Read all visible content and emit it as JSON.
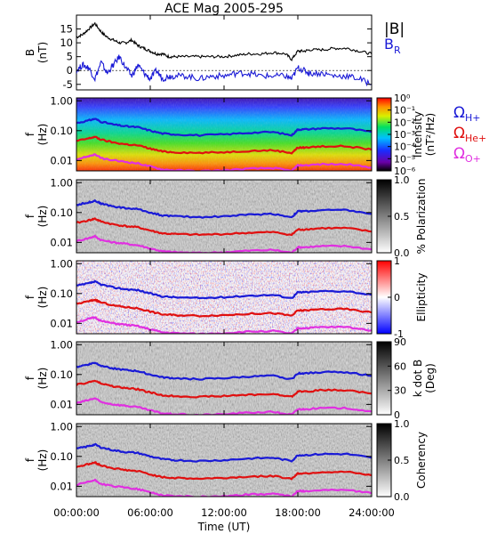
{
  "chart_data": {
    "type": "line",
    "title": "ACE Mag 2005-295",
    "xlabel": "Time (UT)",
    "x_ticks": [
      "00:00:00",
      "06:00:00",
      "12:00:00",
      "18:00:00",
      "24:00:00"
    ],
    "xlim": [
      0,
      24
    ],
    "panels": [
      {
        "kind": "timeseries",
        "ylabel_1": "B",
        "ylabel_2": "(nT)",
        "ylim": [
          -7,
          20
        ],
        "yticks": [
          "15",
          "10",
          "5",
          "0",
          "-5"
        ],
        "yticks_values": [
          15,
          10,
          5,
          0,
          -5
        ],
        "legend": [
          {
            "label": "|B|",
            "color": "#000000"
          },
          {
            "label": "B",
            "sub": "R",
            "color": "#1a1ad6"
          }
        ],
        "series": [
          {
            "name": "|B|",
            "color": "#000000",
            "x": [
              0,
              0.5,
              1,
              1.5,
              2,
              2.5,
              3,
              3.5,
              4,
              4.5,
              5,
              5.5,
              6,
              6.5,
              7,
              7.5,
              8,
              9,
              10,
              11,
              12,
              13,
              14,
              15,
              16,
              17,
              17.5,
              18,
              18.5,
              19,
              20,
              21,
              22,
              23,
              24
            ],
            "y": [
              12,
              13,
              15,
              17,
              14,
              12,
              11,
              10,
              10,
              11,
              9,
              8,
              7,
              6,
              6,
              5,
              5,
              5,
              5,
              5,
              5,
              5.5,
              6,
              6,
              6.5,
              6,
              4,
              7,
              7,
              7.5,
              7.5,
              8,
              8,
              7,
              6
            ]
          },
          {
            "name": "B_R",
            "color": "#1a1ad6",
            "x": [
              0,
              0.5,
              1,
              1.5,
              2,
              2.5,
              3,
              3.5,
              4,
              4.5,
              5,
              5.5,
              6,
              6.5,
              7,
              7.5,
              8,
              9,
              10,
              11,
              12,
              13,
              14,
              15,
              16,
              17,
              17.5,
              18,
              18.5,
              19,
              20,
              21,
              22,
              23,
              24
            ],
            "y": [
              0,
              2,
              1,
              -3,
              3,
              -1,
              2,
              5,
              1,
              -2,
              2,
              -1,
              -3,
              0,
              -3,
              -2,
              -2,
              -2,
              -3,
              -2,
              -2,
              -1,
              -1,
              -2,
              -2,
              -2,
              -3,
              1,
              0,
              -1,
              -1,
              -2,
              -2,
              -3,
              -5
            ]
          }
        ]
      },
      {
        "kind": "spectrogram",
        "name": "power",
        "ylabel_1": "f",
        "ylabel_2": "(Hz)",
        "yticks": [
          "1.00",
          "0.10",
          "0.01"
        ],
        "colorbar": {
          "palette": "rainbow",
          "ticks": [
            "10⁰",
            "10⁻¹",
            "10⁻²",
            "10⁻³",
            "10⁻⁴",
            "10⁻⁵",
            "10⁻⁶"
          ],
          "label_1": "Intensity",
          "label_2": "(nT²/Hz)"
        },
        "legend": [
          {
            "label": "Ω",
            "sub": "H+",
            "color": "#1a1ad6"
          },
          {
            "label": "Ω",
            "sub": "He+",
            "color": "#e01010"
          },
          {
            "label": "Ω",
            "sub": "O+",
            "color": "#e030e0"
          }
        ]
      },
      {
        "kind": "spectrogram",
        "name": "polarization",
        "ylabel_1": "f",
        "ylabel_2": "(Hz)",
        "yticks": [
          "1.00",
          "0.10",
          "0.01"
        ],
        "colorbar": {
          "palette": "gray",
          "ticks": [
            "1.0",
            "0.5",
            "0.0"
          ],
          "label_1": "% Polarization",
          "label_2": ""
        }
      },
      {
        "kind": "spectrogram",
        "name": "ellipticity",
        "ylabel_1": "f",
        "ylabel_2": "(Hz)",
        "yticks": [
          "1.00",
          "0.10",
          "0.01"
        ],
        "colorbar": {
          "palette": "bwr",
          "ticks": [
            "1",
            "0",
            "-1"
          ],
          "label_1": "Ellipticity",
          "label_2": ""
        }
      },
      {
        "kind": "spectrogram",
        "name": "kdotb",
        "ylabel_1": "f",
        "ylabel_2": "(Hz)",
        "yticks": [
          "1.00",
          "0.10",
          "0.01"
        ],
        "colorbar": {
          "palette": "gray",
          "ticks": [
            "90",
            "60",
            "30",
            "0"
          ],
          "label_1": "k dot B",
          "label_2": "(Deg)"
        }
      },
      {
        "kind": "spectrogram",
        "name": "coherency",
        "ylabel_1": "f",
        "ylabel_2": "(Hz)",
        "yticks": [
          "1.00",
          "0.10",
          "0.01"
        ],
        "colorbar": {
          "palette": "gray",
          "ticks": [
            "1.0",
            "0.5",
            "0.0"
          ],
          "label_1": "Coherency",
          "label_2": ""
        }
      }
    ],
    "gyrofrequency_lines": [
      {
        "name": "H+",
        "color": "#1a1ad6",
        "x": [
          0,
          1,
          1.5,
          2,
          3,
          4,
          5,
          6,
          7,
          8,
          10,
          12,
          14,
          16,
          17.5,
          18,
          18.5,
          20,
          22,
          24
        ],
        "y": [
          0.18,
          0.22,
          0.25,
          0.2,
          0.16,
          0.14,
          0.13,
          0.1,
          0.08,
          0.075,
          0.07,
          0.075,
          0.085,
          0.09,
          0.07,
          0.11,
          0.11,
          0.12,
          0.12,
          0.09
        ]
      },
      {
        "name": "He+",
        "color": "#e01010",
        "x": [
          0,
          1,
          1.5,
          2,
          3,
          4,
          5,
          6,
          7,
          8,
          10,
          12,
          14,
          16,
          17.5,
          18,
          18.5,
          20,
          22,
          24
        ],
        "y": [
          0.045,
          0.055,
          0.062,
          0.05,
          0.04,
          0.035,
          0.032,
          0.025,
          0.02,
          0.019,
          0.018,
          0.019,
          0.021,
          0.022,
          0.018,
          0.027,
          0.027,
          0.03,
          0.03,
          0.023
        ]
      },
      {
        "name": "O+",
        "color": "#e030e0",
        "x": [
          0,
          1,
          1.5,
          2,
          3,
          4,
          5,
          6,
          7,
          8,
          10,
          12,
          14,
          16,
          17.5,
          18,
          18.5,
          20,
          22,
          24
        ],
        "y": [
          0.011,
          0.014,
          0.016,
          0.012,
          0.01,
          0.009,
          0.008,
          0.0063,
          0.005,
          0.0047,
          0.0044,
          0.0047,
          0.0053,
          0.0056,
          0.0045,
          0.0069,
          0.0069,
          0.0075,
          0.0075,
          0.0058
        ]
      }
    ]
  }
}
